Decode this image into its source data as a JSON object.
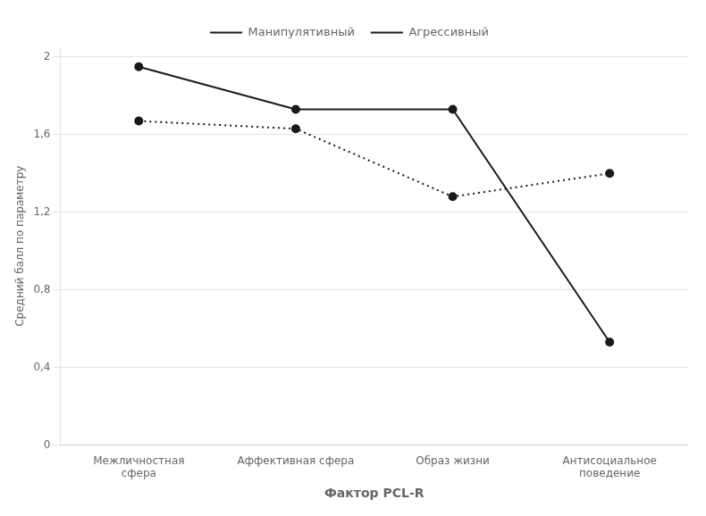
{
  "chart_data": {
    "type": "line",
    "categories": [
      "Межличностная\nсфера",
      "Аффективная сфера",
      "Образ жизни",
      "Антисоциальное\nповедение"
    ],
    "series": [
      {
        "name": "Манипулятивный",
        "color": "#1a1a1a",
        "line_style": "solid",
        "marker": "circle",
        "values": [
          1.95,
          1.73,
          1.73,
          0.53
        ]
      },
      {
        "name": "Агрессивный",
        "color": "#1a1a1a",
        "line_style": "dotted",
        "marker": "circle",
        "values": [
          1.67,
          1.63,
          1.28,
          1.4
        ]
      }
    ],
    "xlabel": "Фактор PCL-R",
    "ylabel": "Средний балл по параметру",
    "ylim": [
      0,
      2.05
    ],
    "yticks": [
      0,
      {
        "value": 0.4,
        "label": "0,4"
      },
      {
        "value": 0.8,
        "label": "0,8"
      },
      {
        "value": 1.2,
        "label": "1,2"
      },
      {
        "value": 1.6,
        "label": "1,6"
      },
      2
    ],
    "grid": "y",
    "legend": "top"
  }
}
